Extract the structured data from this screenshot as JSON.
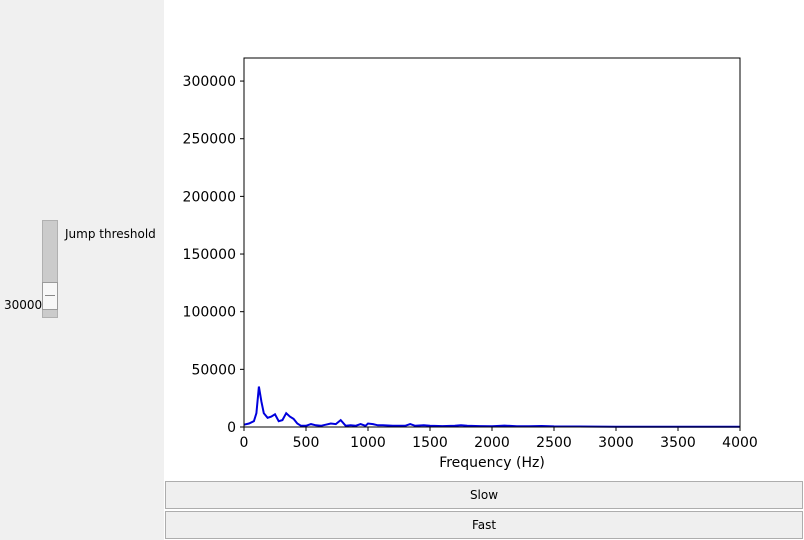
{
  "slider": {
    "label": "Jump threshold",
    "value_label": "30000",
    "value_fraction": 0.12
  },
  "buttons": {
    "slow_label": "Slow",
    "fast_label": "Fast"
  },
  "chart_data": {
    "type": "line",
    "xlabel": "Frequency (Hz)",
    "ylabel": "",
    "xlim": [
      0,
      4000
    ],
    "ylim": [
      0,
      320000
    ],
    "x_ticks": [
      0,
      500,
      1000,
      1500,
      2000,
      2500,
      3000,
      3500,
      4000
    ],
    "y_ticks": [
      0,
      50000,
      100000,
      150000,
      200000,
      250000,
      300000
    ],
    "grid": false,
    "line_color": "#0000dd",
    "series": [
      {
        "x": [
          0,
          40,
          80,
          100,
          120,
          140,
          160,
          190,
          220,
          250,
          280,
          310,
          340,
          370,
          400,
          430,
          460,
          500,
          540,
          580,
          620,
          660,
          700,
          740,
          780,
          820,
          860,
          900,
          940,
          980,
          1000,
          1040,
          1080,
          1120,
          1200,
          1300,
          1340,
          1380,
          1450,
          1500,
          1600,
          1700,
          1750,
          1800,
          1900,
          2000,
          2100,
          2200,
          2300,
          2400,
          2500,
          2700,
          3000,
          3500,
          4000
        ],
        "y": [
          2000,
          3000,
          5000,
          12000,
          35000,
          22000,
          12000,
          8000,
          9000,
          11000,
          5000,
          6000,
          12000,
          9000,
          7000,
          3000,
          1000,
          1000,
          2500,
          1500,
          1000,
          2000,
          3000,
          2500,
          6000,
          1000,
          1500,
          1000,
          2500,
          1000,
          3000,
          2500,
          1500,
          1500,
          1000,
          1000,
          2500,
          1000,
          1500,
          1000,
          800,
          1000,
          1500,
          1000,
          800,
          700,
          1200,
          600,
          700,
          900,
          500,
          400,
          300,
          200,
          200
        ]
      }
    ]
  }
}
